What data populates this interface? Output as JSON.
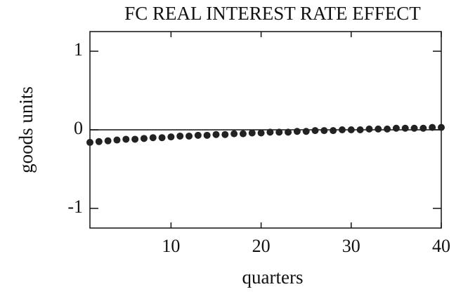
{
  "chart_data": {
    "type": "scatter",
    "title": "FC REAL INTEREST RATE EFFECT",
    "xlabel": "quarters",
    "ylabel": "goods units",
    "x": [
      1,
      2,
      3,
      4,
      5,
      6,
      7,
      8,
      9,
      10,
      11,
      12,
      13,
      14,
      15,
      16,
      17,
      18,
      19,
      20,
      21,
      22,
      23,
      24,
      25,
      26,
      27,
      28,
      29,
      30,
      31,
      32,
      33,
      34,
      35,
      36,
      37,
      38,
      39,
      40
    ],
    "values": [
      -0.16,
      -0.15,
      -0.14,
      -0.13,
      -0.12,
      -0.12,
      -0.11,
      -0.1,
      -0.1,
      -0.09,
      -0.08,
      -0.08,
      -0.07,
      -0.07,
      -0.06,
      -0.06,
      -0.05,
      -0.05,
      -0.04,
      -0.04,
      -0.03,
      -0.03,
      -0.03,
      -0.02,
      -0.02,
      -0.01,
      -0.01,
      -0.01,
      0,
      0,
      0,
      0.01,
      0.01,
      0.01,
      0.02,
      0.02,
      0.02,
      0.02,
      0.03,
      0.03
    ],
    "color": "#222222",
    "xlim": [
      1,
      40
    ],
    "xticks": [
      10,
      20,
      30,
      40
    ],
    "ylim": [
      -1.25,
      1.25
    ],
    "yticks": [
      -1,
      0,
      1
    ],
    "zero_line": true
  }
}
